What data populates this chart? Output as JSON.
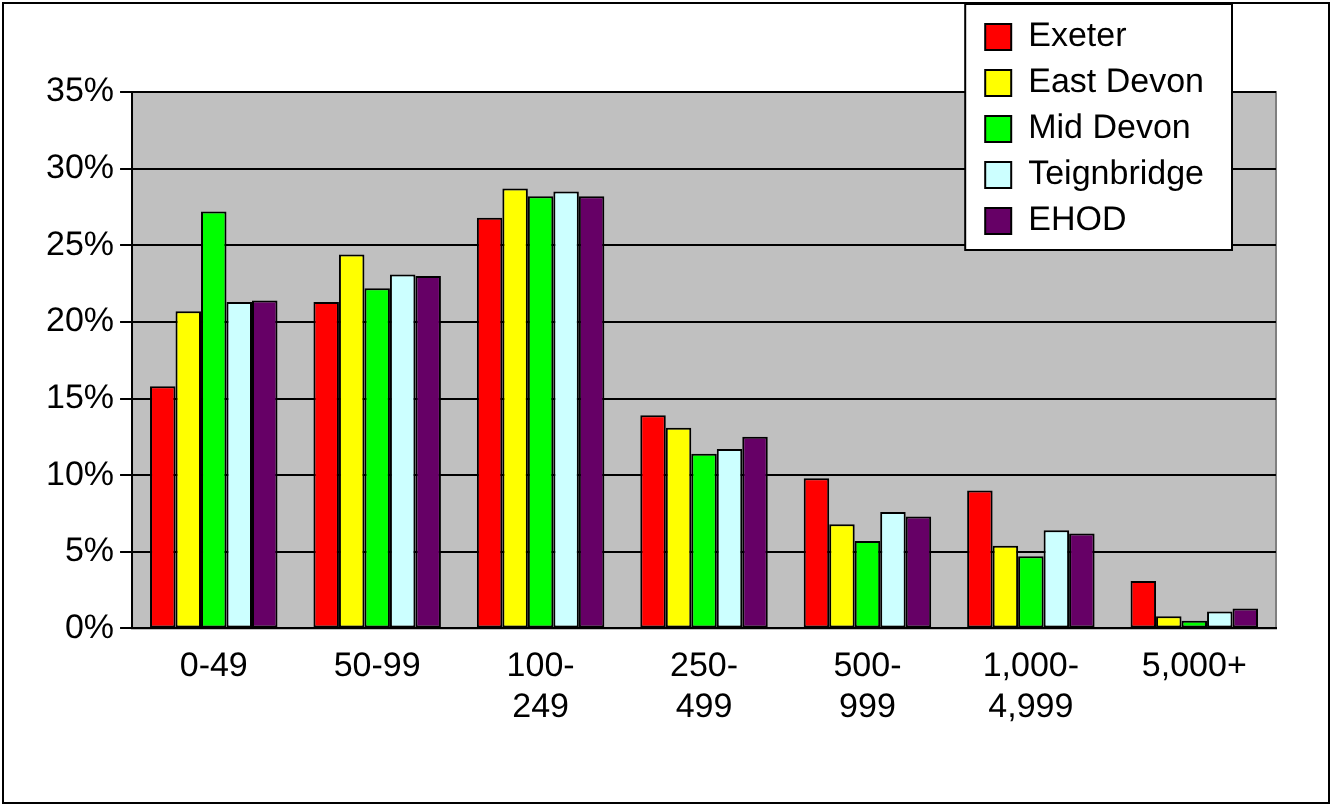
{
  "chart_data": {
    "type": "bar",
    "categories": [
      "0-49",
      "50-99",
      "100-249",
      "250-499",
      "500-999",
      "1,000-4,999",
      "5,000+"
    ],
    "series": [
      {
        "name": "Exeter",
        "color": "#ff0000",
        "values": [
          15.8,
          21.3,
          26.8,
          13.9,
          9.8,
          9.0,
          3.1
        ]
      },
      {
        "name": "East Devon",
        "color": "#ffff00",
        "values": [
          20.7,
          24.4,
          28.7,
          13.1,
          6.8,
          5.4,
          0.8
        ]
      },
      {
        "name": "Mid Devon",
        "color": "#00ff00",
        "values": [
          27.2,
          22.2,
          28.2,
          11.4,
          5.7,
          4.7,
          0.5
        ]
      },
      {
        "name": "Teignbridge",
        "color": "#ccffff",
        "values": [
          21.3,
          23.1,
          28.5,
          11.7,
          7.6,
          6.4,
          1.1
        ]
      },
      {
        "name": "EHOD",
        "color": "#660066",
        "values": [
          21.4,
          23.0,
          28.2,
          12.5,
          7.3,
          6.2,
          1.3
        ]
      }
    ],
    "ylim": [
      0,
      35
    ],
    "yticks": [
      {
        "value": 0,
        "label": "0%"
      },
      {
        "value": 5,
        "label": "5%"
      },
      {
        "value": 10,
        "label": "10%"
      },
      {
        "value": 15,
        "label": "15%"
      },
      {
        "value": 20,
        "label": "20%"
      },
      {
        "value": 25,
        "label": "25%"
      },
      {
        "value": 30,
        "label": "30%"
      },
      {
        "value": 35,
        "label": "35%"
      }
    ],
    "grid": "y",
    "legend": "top right"
  }
}
